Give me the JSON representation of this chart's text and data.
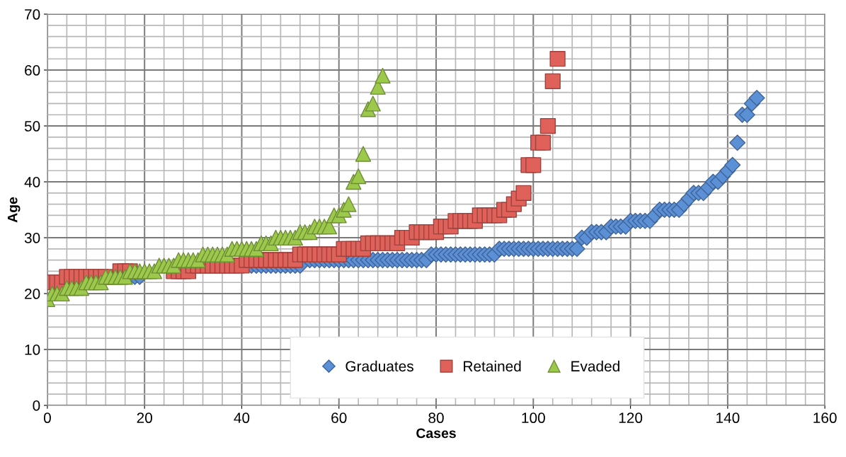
{
  "chart_data": {
    "type": "scatter",
    "xlabel": "Cases",
    "ylabel": "Age",
    "xlim": [
      0,
      160
    ],
    "xticks": [
      0,
      20,
      40,
      60,
      80,
      100,
      120,
      140,
      160
    ],
    "ylim": [
      0,
      70
    ],
    "yticks": [
      0,
      10,
      20,
      30,
      40,
      50,
      60,
      70
    ],
    "grid": true,
    "legend": "bottom",
    "series": [
      {
        "name": "Graduates",
        "color": "#5b8fd6",
        "marker": "diamond",
        "x": [
          18,
          19,
          42,
          43,
          44,
          45,
          46,
          47,
          48,
          49,
          50,
          51,
          52,
          54,
          55,
          56,
          57,
          58,
          59,
          60,
          61,
          62,
          63,
          64,
          65,
          66,
          67,
          68,
          69,
          70,
          71,
          72,
          73,
          74,
          75,
          76,
          77,
          78,
          79,
          80,
          81,
          82,
          83,
          84,
          85,
          86,
          87,
          88,
          89,
          90,
          91,
          92,
          93,
          94,
          95,
          96,
          97,
          98,
          99,
          100,
          101,
          102,
          103,
          104,
          105,
          106,
          107,
          108,
          109,
          110,
          111,
          112,
          113,
          114,
          115,
          116,
          117,
          118,
          119,
          120,
          121,
          122,
          123,
          124,
          125,
          126,
          127,
          128,
          129,
          130,
          131,
          132,
          133,
          134,
          135,
          136,
          137,
          138,
          139,
          140,
          141,
          142,
          143,
          144,
          145,
          146
        ],
        "values": [
          23,
          23,
          25,
          25,
          25,
          25,
          25,
          25,
          25,
          25,
          25,
          25,
          25,
          26,
          26,
          26,
          26,
          26,
          26,
          26,
          26,
          26,
          26,
          26,
          26,
          26,
          26,
          26,
          26,
          26,
          26,
          26,
          26,
          26,
          26,
          26,
          26,
          26,
          27,
          27,
          27,
          27,
          27,
          27,
          27,
          27,
          27,
          27,
          27,
          27,
          27,
          27,
          28,
          28,
          28,
          28,
          28,
          28,
          28,
          28,
          28,
          28,
          28,
          28,
          28,
          28,
          28,
          28,
          28,
          30,
          30,
          31,
          31,
          31,
          31,
          32,
          32,
          32,
          32,
          33,
          33,
          33,
          33,
          33,
          34,
          35,
          35,
          35,
          35,
          35,
          36,
          37,
          38,
          38,
          38,
          39,
          40,
          40,
          41,
          42,
          43,
          47,
          52,
          52,
          54,
          55
        ]
      },
      {
        "name": "Retained",
        "color": "#e0605a",
        "marker": "square",
        "x": [
          1,
          2,
          3,
          4,
          5,
          6,
          7,
          8,
          9,
          10,
          11,
          12,
          15,
          16,
          17,
          26,
          27,
          28,
          29,
          30,
          31,
          32,
          33,
          34,
          35,
          36,
          37,
          38,
          39,
          40,
          41,
          42,
          43,
          44,
          45,
          46,
          47,
          48,
          49,
          50,
          51,
          52,
          53,
          54,
          55,
          56,
          57,
          58,
          59,
          60,
          61,
          62,
          63,
          64,
          65,
          66,
          67,
          68,
          69,
          70,
          71,
          72,
          73,
          74,
          75,
          76,
          77,
          78,
          79,
          80,
          81,
          82,
          83,
          84,
          85,
          86,
          87,
          88,
          89,
          90,
          91,
          92,
          93,
          94,
          95,
          96,
          97,
          98,
          99,
          100,
          101,
          102,
          103,
          104,
          105
        ],
        "values": [
          22,
          22,
          22,
          23,
          23,
          23,
          23,
          23,
          23,
          23,
          23,
          23,
          24,
          24,
          24,
          24,
          24,
          24,
          24,
          25,
          25,
          25,
          25,
          25,
          25,
          25,
          25,
          25,
          25,
          25,
          26,
          26,
          26,
          26,
          26,
          26,
          26,
          26,
          26,
          26,
          26,
          27,
          27,
          27,
          27,
          27,
          27,
          27,
          27,
          27,
          28,
          28,
          28,
          28,
          28,
          29,
          29,
          29,
          29,
          29,
          29,
          29,
          30,
          30,
          30,
          31,
          31,
          31,
          31,
          31,
          32,
          32,
          32,
          33,
          33,
          33,
          33,
          33,
          34,
          34,
          34,
          34,
          34,
          35,
          35,
          36,
          37,
          38,
          43,
          43,
          47,
          47,
          50,
          58,
          62
        ]
      },
      {
        "name": "Evaded",
        "color": "#9cc94c",
        "marker": "triangle",
        "x": [
          0,
          1,
          2,
          3,
          4,
          5,
          6,
          7,
          8,
          9,
          10,
          11,
          12,
          13,
          14,
          15,
          16,
          17,
          18,
          19,
          20,
          21,
          22,
          23,
          24,
          25,
          26,
          27,
          28,
          29,
          30,
          31,
          32,
          33,
          34,
          35,
          36,
          37,
          38,
          39,
          40,
          41,
          42,
          43,
          44,
          45,
          46,
          47,
          48,
          49,
          50,
          51,
          52,
          53,
          54,
          55,
          56,
          57,
          58,
          59,
          60,
          61,
          62,
          63,
          64,
          65,
          66,
          67,
          68,
          69
        ],
        "values": [
          19,
          20,
          20,
          20,
          21,
          21,
          21,
          21,
          22,
          22,
          22,
          22,
          23,
          23,
          23,
          23,
          23,
          24,
          24,
          24,
          24,
          24,
          24,
          25,
          25,
          25,
          25,
          26,
          26,
          26,
          26,
          26,
          27,
          27,
          27,
          27,
          27,
          27,
          28,
          28,
          28,
          28,
          28,
          28,
          29,
          29,
          29,
          30,
          30,
          30,
          30,
          30,
          31,
          31,
          31,
          32,
          32,
          32,
          32,
          34,
          34,
          35,
          36,
          40,
          41,
          45,
          53,
          54,
          57,
          59
        ]
      }
    ]
  }
}
